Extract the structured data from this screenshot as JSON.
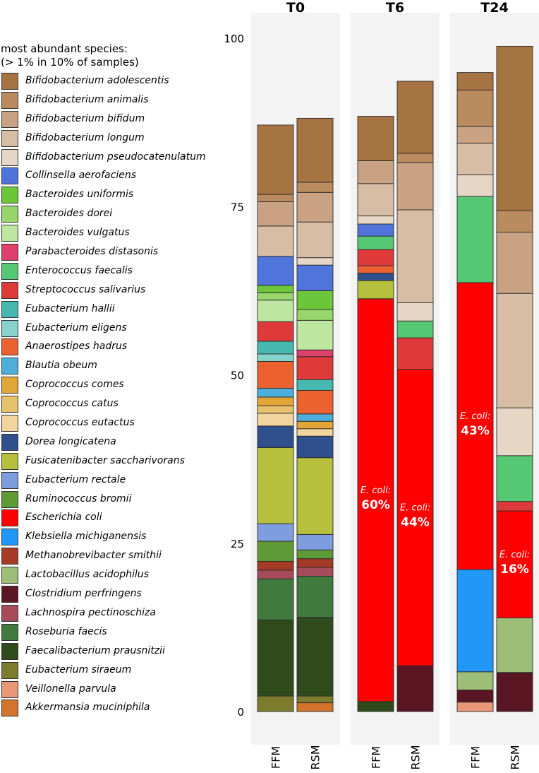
{
  "legend": {
    "title_line1": "most abundant species:",
    "title_line2": "(> 1% in 10% of samples)",
    "items": [
      {
        "name": "Bifidobacterium adolescentis",
        "color": "#a67443"
      },
      {
        "name": "Bifidobacterium animalis",
        "color": "#b98b5f"
      },
      {
        "name": "Bifidobacterium bifidum",
        "color": "#c9a283"
      },
      {
        "name": "Bifidobacterium longum",
        "color": "#d6bda4"
      },
      {
        "name": "Bifidobacterium pseudocatenulatum",
        "color": "#e6d6c5"
      },
      {
        "name": "Collinsella aerofaciens",
        "color": "#4f74db"
      },
      {
        "name": "Bacteroides uniformis",
        "color": "#6cc63a"
      },
      {
        "name": "Bacteroides dorei",
        "color": "#97d66b"
      },
      {
        "name": "Bacteroides vulgatus",
        "color": "#bde6a1"
      },
      {
        "name": "Parabacteroides distasonis",
        "color": "#de3f6c"
      },
      {
        "name": "Enterococcus faecalis",
        "color": "#56c874"
      },
      {
        "name": "Streptococcus salivarius",
        "color": "#df3a3a"
      },
      {
        "name": "Eubacterium hallii",
        "color": "#46b8b0"
      },
      {
        "name": "Eubacterium eligens",
        "color": "#88d2cc"
      },
      {
        "name": "Anaerostipes hadrus",
        "color": "#ec6130"
      },
      {
        "name": "Blautia obeum",
        "color": "#4eaedb"
      },
      {
        "name": "Coprococcus comes",
        "color": "#e2a638"
      },
      {
        "name": "Coprococcus catus",
        "color": "#e8c16b"
      },
      {
        "name": "Coprococcus eutactus",
        "color": "#f2d49e"
      },
      {
        "name": "Dorea longicatena",
        "color": "#2f4f8d"
      },
      {
        "name": "Fusicatenibacter saccharivorans",
        "color": "#b6c03d"
      },
      {
        "name": "Eubacterium rectale",
        "color": "#7d9ddf"
      },
      {
        "name": "Ruminococcus bromii",
        "color": "#5e9b36"
      },
      {
        "name": "Escherichia coli",
        "color": "#ff0000"
      },
      {
        "name": "Klebsiella michiganensis",
        "color": "#2197f7"
      },
      {
        "name": "Methanobrevibacter smithii",
        "color": "#a53a26"
      },
      {
        "name": "Lactobacillus acidophilus",
        "color": "#9cbe77"
      },
      {
        "name": "Clostridium perfringens",
        "color": "#5a1622"
      },
      {
        "name": "Lachnospira pectinoschiza",
        "color": "#a64b5a"
      },
      {
        "name": "Roseburia faecis",
        "color": "#417a3f"
      },
      {
        "name": "Faecalibacterium prausnitzii",
        "color": "#2f4a1b"
      },
      {
        "name": "Eubacterium siraeum",
        "color": "#7c7b2e"
      },
      {
        "name": "Veillonella parvula",
        "color": "#e99777"
      },
      {
        "name": "Akkermansia muciniphila",
        "color": "#d2742c"
      }
    ]
  },
  "chart_data": {
    "type": "bar",
    "stacked": true,
    "facets": [
      "T0",
      "T6",
      "T24"
    ],
    "categories": [
      "FFM",
      "RSM"
    ],
    "ylim": [
      0,
      100
    ],
    "yticks": [
      0,
      25,
      50,
      75,
      100
    ],
    "bars": [
      {
        "facet": "T0",
        "category": "FFM",
        "segments": [
          [
            "Akkermansia muciniphila",
            0
          ],
          [
            "Veillonella parvula",
            0
          ],
          [
            "Eubacterium siraeum",
            2.3
          ],
          [
            "Faecalibacterium prausnitzii",
            11.3
          ],
          [
            "Roseburia faecis",
            6.1
          ],
          [
            "Lachnospira pectinoschiza",
            1.3
          ],
          [
            "Clostridium perfringens",
            0
          ],
          [
            "Lactobacillus acidophilus",
            0
          ],
          [
            "Methanobrevibacter smithii",
            1.3
          ],
          [
            "Klebsiella michiganensis",
            0
          ],
          [
            "Escherichia coli",
            0
          ],
          [
            "Ruminococcus bromii",
            3.0
          ],
          [
            "Eubacterium rectale",
            2.6
          ],
          [
            "Fusicatenibacter saccharivorans",
            11.3
          ],
          [
            "Dorea longicatena",
            3.2
          ],
          [
            "Coprococcus eutactus",
            1.9
          ],
          [
            "Coprococcus catus",
            1.1
          ],
          [
            "Coprococcus comes",
            1.3
          ],
          [
            "Blautia obeum",
            1.3
          ],
          [
            "Anaerostipes hadrus",
            4.0
          ],
          [
            "Eubacterium eligens",
            1.1
          ],
          [
            "Eubacterium hallii",
            1.9
          ],
          [
            "Streptococcus salivarius",
            2.9
          ],
          [
            "Enterococcus faecalis",
            0
          ],
          [
            "Parabacteroides distasonis",
            0
          ],
          [
            "Bacteroides vulgatus",
            3.2
          ],
          [
            "Bacteroides dorei",
            1.1
          ],
          [
            "Bacteroides uniformis",
            1.1
          ],
          [
            "Collinsella aerofaciens",
            4.3
          ],
          [
            "Bifidobacterium pseudocatenulatum",
            0
          ],
          [
            "Bifidobacterium longum",
            4.5
          ],
          [
            "Bifidobacterium bifidum",
            3.6
          ],
          [
            "Bifidobacterium animalis",
            1.1
          ],
          [
            "Bifidobacterium adolescentis",
            10.3
          ]
        ]
      },
      {
        "facet": "T0",
        "category": "RSM",
        "segments": [
          [
            "Akkermansia muciniphila",
            1.3
          ],
          [
            "Veillonella parvula",
            0
          ],
          [
            "Eubacterium siraeum",
            1.0
          ],
          [
            "Faecalibacterium prausnitzii",
            11.7
          ],
          [
            "Roseburia faecis",
            6.1
          ],
          [
            "Lachnospira pectinoschiza",
            1.3
          ],
          [
            "Clostridium perfringens",
            0
          ],
          [
            "Lactobacillus acidophilus",
            0
          ],
          [
            "Methanobrevibacter smithii",
            1.3
          ],
          [
            "Klebsiella michiganensis",
            0
          ],
          [
            "Escherichia coli",
            0
          ],
          [
            "Ruminococcus bromii",
            1.3
          ],
          [
            "Eubacterium rectale",
            2.3
          ],
          [
            "Fusicatenibacter saccharivorans",
            11.4
          ],
          [
            "Dorea longicatena",
            3.2
          ],
          [
            "Coprococcus eutactus",
            1.1
          ],
          [
            "Coprococcus catus",
            0
          ],
          [
            "Coprococcus comes",
            1.1
          ],
          [
            "Blautia obeum",
            1.1
          ],
          [
            "Anaerostipes hadrus",
            3.5
          ],
          [
            "Eubacterium eligens",
            0
          ],
          [
            "Eubacterium hallii",
            1.6
          ],
          [
            "Streptococcus salivarius",
            3.4
          ],
          [
            "Enterococcus faecalis",
            0
          ],
          [
            "Parabacteroides distasonis",
            1.0
          ],
          [
            "Bacteroides vulgatus",
            4.4
          ],
          [
            "Bacteroides dorei",
            1.6
          ],
          [
            "Bacteroides uniformis",
            2.8
          ],
          [
            "Collinsella aerofaciens",
            3.8
          ],
          [
            "Bifidobacterium pseudocatenulatum",
            1.1
          ],
          [
            "Bifidobacterium longum",
            5.3
          ],
          [
            "Bifidobacterium bifidum",
            4.4
          ],
          [
            "Bifidobacterium animalis",
            1.5
          ],
          [
            "Bifidobacterium adolescentis",
            9.5
          ]
        ]
      },
      {
        "facet": "T6",
        "category": "FFM",
        "segments": [
          [
            "Faecalibacterium prausnitzii",
            1.5
          ],
          [
            "Escherichia coli",
            59.8
          ],
          [
            "Fusicatenibacter saccharivorans",
            2.7
          ],
          [
            "Dorea longicatena",
            1.1
          ],
          [
            "Anaerostipes hadrus",
            1.1
          ],
          [
            "Streptococcus salivarius",
            2.4
          ],
          [
            "Enterococcus faecalis",
            2.0
          ],
          [
            "Collinsella aerofaciens",
            1.8
          ],
          [
            "Bifidobacterium pseudocatenulatum",
            1.2
          ],
          [
            "Bifidobacterium longum",
            4.8
          ],
          [
            "Bifidobacterium bifidum",
            3.4
          ],
          [
            "Bifidobacterium adolescentis",
            6.6
          ]
        ]
      },
      {
        "facet": "T6",
        "category": "RSM",
        "segments": [
          [
            "Clostridium perfringens",
            6.8
          ],
          [
            "Escherichia coli",
            44.0
          ],
          [
            "Streptococcus salivarius",
            4.7
          ],
          [
            "Enterococcus faecalis",
            2.5
          ],
          [
            "Bifidobacterium pseudocatenulatum",
            2.7
          ],
          [
            "Bifidobacterium longum",
            13.8
          ],
          [
            "Bifidobacterium bifidum",
            7.0
          ],
          [
            "Bifidobacterium animalis",
            1.4
          ],
          [
            "Bifidobacterium adolescentis",
            10.7
          ]
        ]
      },
      {
        "facet": "T24",
        "category": "FFM",
        "segments": [
          [
            "Veillonella parvula",
            1.4
          ],
          [
            "Clostridium perfringens",
            1.8
          ],
          [
            "Lactobacillus acidophilus",
            2.7
          ],
          [
            "Klebsiella michiganensis",
            15.2
          ],
          [
            "Escherichia coli",
            42.6
          ],
          [
            "Enterococcus faecalis",
            12.8
          ],
          [
            "Bifidobacterium pseudocatenulatum",
            3.2
          ],
          [
            "Bifidobacterium longum",
            4.7
          ],
          [
            "Bifidobacterium bifidum",
            2.5
          ],
          [
            "Bifidobacterium animalis",
            5.4
          ],
          [
            "Bifidobacterium adolescentis",
            2.6
          ]
        ]
      },
      {
        "facet": "T24",
        "category": "RSM",
        "segments": [
          [
            "Clostridium perfringens",
            5.8
          ],
          [
            "Lactobacillus acidophilus",
            8.1
          ],
          [
            "Escherichia coli",
            15.9
          ],
          [
            "Streptococcus salivarius",
            1.4
          ],
          [
            "Enterococcus faecalis",
            6.8
          ],
          [
            "Bifidobacterium pseudocatenulatum",
            7.1
          ],
          [
            "Bifidobacterium longum",
            17.0
          ],
          [
            "Bifidobacterium bifidum",
            9.1
          ],
          [
            "Bifidobacterium animalis",
            3.2
          ],
          [
            "Bifidobacterium adolescentis",
            24.4
          ]
        ]
      }
    ],
    "annotations": [
      {
        "facet": "T6",
        "category": "FFM",
        "label": "E. coli:",
        "value": "60%"
      },
      {
        "facet": "T6",
        "category": "RSM",
        "label": "E. coli:",
        "value": "44%"
      },
      {
        "facet": "T24",
        "category": "FFM",
        "label": "E. coli:",
        "value": "43%"
      },
      {
        "facet": "T24",
        "category": "RSM",
        "label": "E. coli:",
        "value": "16%"
      }
    ]
  }
}
